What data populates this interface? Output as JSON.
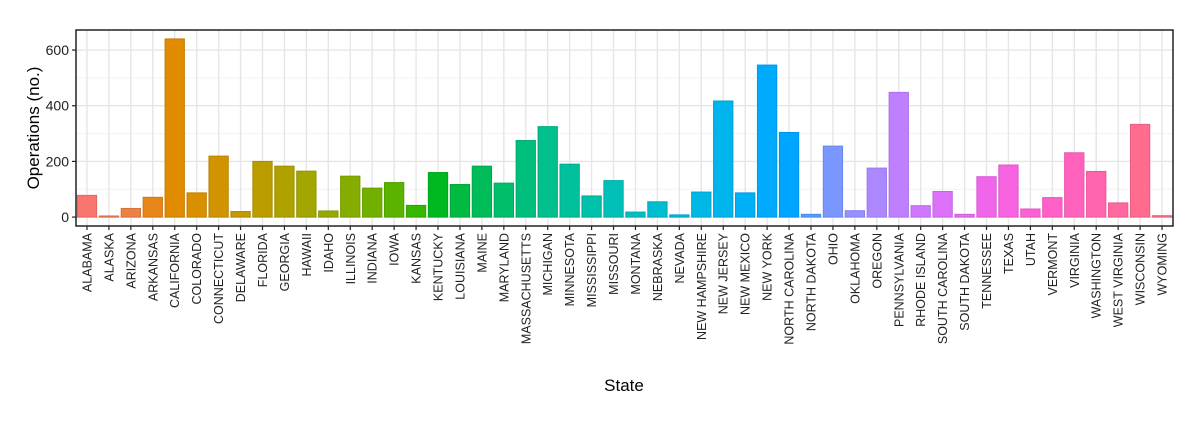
{
  "chart_data": {
    "type": "bar",
    "xlabel": "State",
    "ylabel": "Operations (no.)",
    "ylim": [
      -32,
      672
    ],
    "yticks": [
      0,
      200,
      400,
      600
    ],
    "grid": true,
    "legend": "none",
    "palette": "hue (one color per state, red → orange → green → blue → purple → pink)",
    "categories": [
      "ALABAMA",
      "ALASKA",
      "ARIZONA",
      "ARKANSAS",
      "CALIFORNIA",
      "COLORADO",
      "CONNECTICUT",
      "DELAWARE",
      "FLORIDA",
      "GEORGIA",
      "HAWAII",
      "IDAHO",
      "ILLINOIS",
      "INDIANA",
      "IOWA",
      "KANSAS",
      "KENTUCKY",
      "LOUISIANA",
      "MAINE",
      "MARYLAND",
      "MASSACHUSETTS",
      "MICHIGAN",
      "MINNESOTA",
      "MISSISSIPPI",
      "MISSOURI",
      "MONTANA",
      "NEBRASKA",
      "NEVADA",
      "NEW HAMPSHIRE",
      "NEW JERSEY",
      "NEW MEXICO",
      "NEW YORK",
      "NORTH CAROLINA",
      "NORTH DAKOTA",
      "OHIO",
      "OKLAHOMA",
      "OREGON",
      "PENNSYLVANIA",
      "RHODE ISLAND",
      "SOUTH CAROLINA",
      "SOUTH DAKOTA",
      "TENNESSEE",
      "TEXAS",
      "UTAH",
      "VERMONT",
      "VIRGINIA",
      "WASHINGTON",
      "WEST VIRGINIA",
      "WISCONSIN",
      "WYOMING"
    ],
    "values": [
      78,
      4,
      31,
      71,
      640,
      87,
      219,
      20,
      200,
      183,
      165,
      22,
      147,
      104,
      124,
      42,
      160,
      117,
      183,
      122,
      275,
      325,
      190,
      76,
      131,
      18,
      55,
      8,
      90,
      417,
      87,
      546,
      304,
      10,
      255,
      23,
      176,
      448,
      41,
      92,
      10,
      145,
      187,
      29,
      70,
      231,
      164,
      51,
      333,
      5
    ]
  }
}
